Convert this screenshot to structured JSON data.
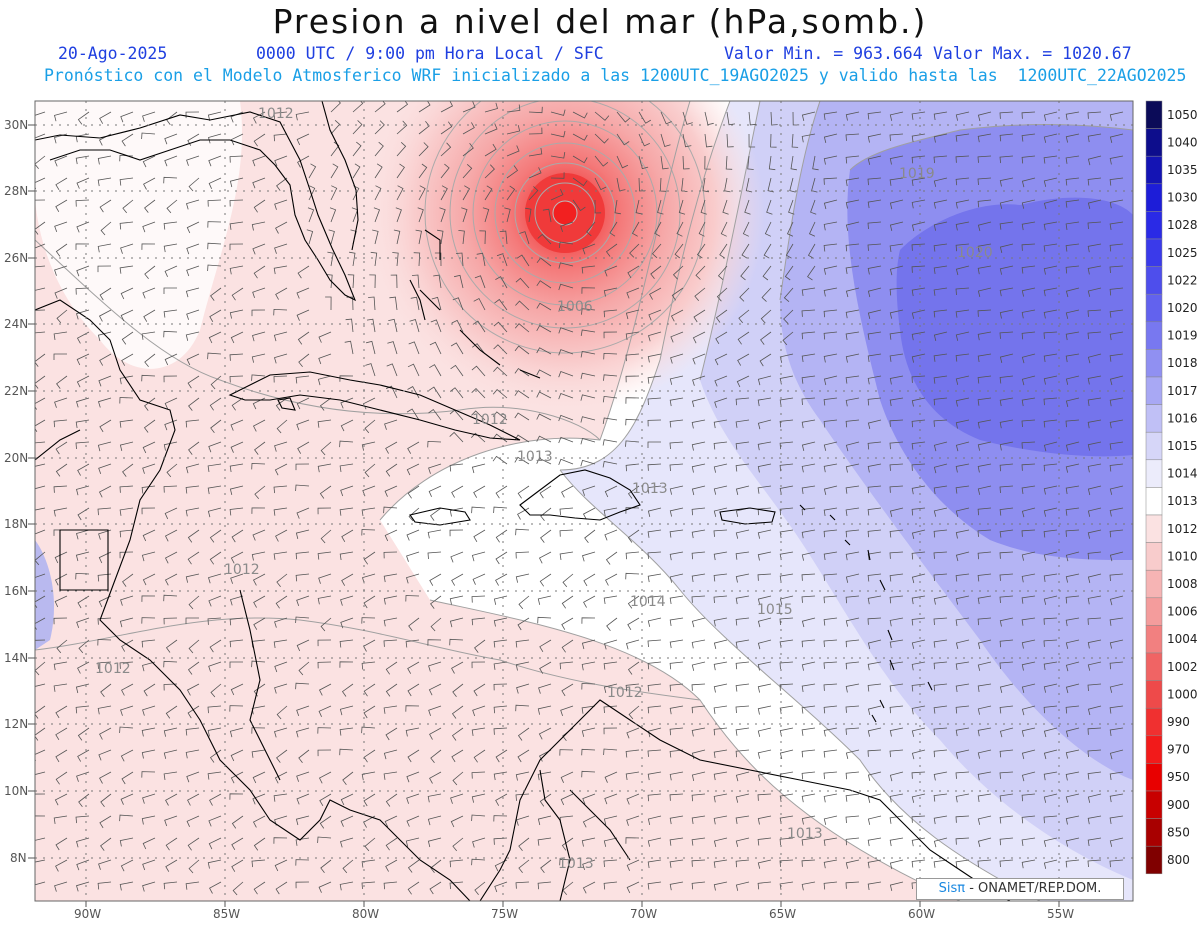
{
  "header": {
    "title": "Presion a nivel del mar (hPa,somb.)",
    "date": "20-Ago-2025",
    "time_info": "0000 UTC / 9:00 pm Hora Local / SFC",
    "min_value": "Valor Min. = 963.664",
    "max_value": "Valor Max. = 1020.67",
    "forecast_info": "Pronóstico con el Modelo Atmosferico WRF inicializado a las 1200UTC_19AGO2025 y valido hasta las  1200UTC_22AGO2025"
  },
  "map": {
    "lat_labels": [
      "30N",
      "28N",
      "26N",
      "24N",
      "22N",
      "20N",
      "18N",
      "16N",
      "14N",
      "12N",
      "10N",
      "8N"
    ],
    "lon_labels": [
      "90W",
      "85W",
      "80W",
      "75W",
      "70W",
      "65W",
      "60W",
      "55W"
    ],
    "contour_labels": [
      "1006",
      "1012",
      "1013",
      "1012",
      "1012",
      "1014",
      "1015",
      "1012",
      "1013",
      "1013",
      "1019",
      "1020",
      "1013",
      "1012"
    ]
  },
  "colorbar": {
    "levels": [
      "1050",
      "1040",
      "1035",
      "1030",
      "1028",
      "1025",
      "1022",
      "1020",
      "1019",
      "1018",
      "1017",
      "1016",
      "1015",
      "1014",
      "1013",
      "1012",
      "1010",
      "1008",
      "1006",
      "1004",
      "1002",
      "1000",
      "990",
      "970",
      "950",
      "900",
      "850",
      "800"
    ],
    "colors": [
      "#0b0b58",
      "#0d0d8c",
      "#1414b4",
      "#1d1dd8",
      "#2a2ae6",
      "#3a3aea",
      "#4e4eec",
      "#6262ee",
      "#7878f0",
      "#9090f2",
      "#a8a8f4",
      "#c0c0f6",
      "#d6d6f8",
      "#ececfb",
      "#ffffff",
      "#fbe2e2",
      "#f8cccc",
      "#f6b4b4",
      "#f49c9c",
      "#f28080",
      "#f06464",
      "#ee4a4a",
      "#f03030",
      "#f21a1a",
      "#e80000",
      "#c80000",
      "#a80000",
      "#800000"
    ]
  },
  "credit": {
    "sis": "Sisπ",
    "text": " - ONAMET/REP.DOM."
  }
}
